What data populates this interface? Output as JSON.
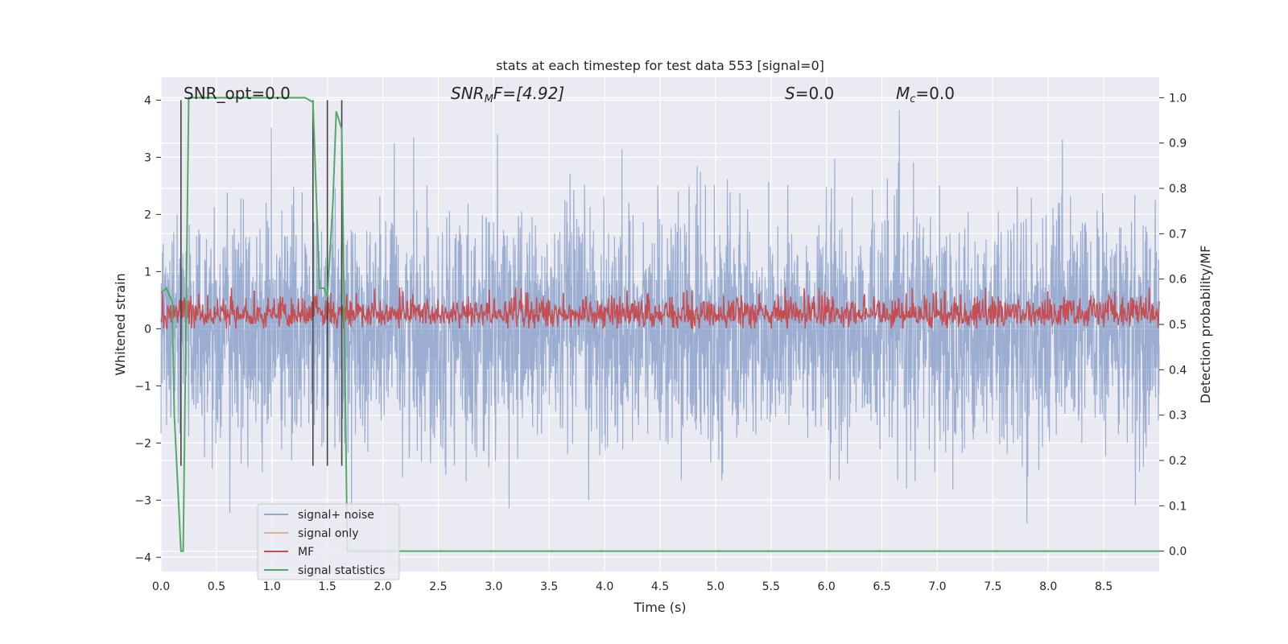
{
  "chart_data": {
    "type": "line",
    "title": "stats at each timestep for test data 553 [signal=0]",
    "xlabel": "Time (s)",
    "ylabel": "Whitened strain",
    "y2label": "Detection probability/MF",
    "xlim": [
      0.0,
      9.0
    ],
    "ylim": [
      -4.25,
      4.4
    ],
    "y2lim": [
      -0.045,
      1.045
    ],
    "x_ticks": [
      "0.0",
      "0.5",
      "1.0",
      "1.5",
      "2.0",
      "2.5",
      "3.0",
      "3.5",
      "4.0",
      "4.5",
      "5.0",
      "5.5",
      "6.0",
      "6.5",
      "7.0",
      "7.5",
      "8.0",
      "8.5"
    ],
    "y_ticks": [
      "4",
      "3",
      "2",
      "1",
      "0",
      "−1",
      "−2",
      "−3",
      "−4"
    ],
    "y2_ticks": [
      "1.0",
      "0.9",
      "0.8",
      "0.7",
      "0.6",
      "0.5",
      "0.4",
      "0.3",
      "0.2",
      "0.1",
      "0.0"
    ],
    "grid": true,
    "legend_position": "lower-left",
    "annotations": {
      "snr_opt": "SNR_opt=0.0",
      "snr_mf_main": "SNR",
      "snr_mf_sub": "M",
      "snr_mf_rest": "F=[4.92]",
      "s_main": "S",
      "s_rest": "=0.0",
      "mc_main": "M",
      "mc_sub": "c",
      "mc_rest": "=0.0"
    },
    "series": [
      {
        "name": "signal+ noise",
        "color": "#4c72b0",
        "axis": "left",
        "noise_amplitude": 1.0,
        "noise_peak": 4.0
      },
      {
        "name": "signal only",
        "color": "#dd8452",
        "axis": "left",
        "values": []
      },
      {
        "name": "MF",
        "color": "#c44e52",
        "axis": "left",
        "baseline": 0.25,
        "range": [
          0.0,
          1.0
        ]
      },
      {
        "name": "signal statistics",
        "color": "#55a868",
        "axis": "right",
        "x": [
          0.0,
          0.05,
          0.1,
          0.12,
          0.18,
          0.2,
          0.25,
          1.3,
          1.37,
          1.43,
          1.47,
          1.5,
          1.55,
          1.58,
          1.63,
          1.68,
          1.75,
          9.0
        ],
        "values": [
          0.57,
          0.58,
          0.55,
          0.3,
          0.0,
          0.0,
          1.0,
          1.0,
          0.99,
          0.58,
          0.58,
          0.56,
          0.77,
          0.97,
          0.93,
          0.0,
          0.0,
          0.0
        ]
      }
    ],
    "vlines": {
      "x": [
        0.18,
        1.37,
        1.5,
        1.63
      ],
      "color": "#444444"
    }
  }
}
